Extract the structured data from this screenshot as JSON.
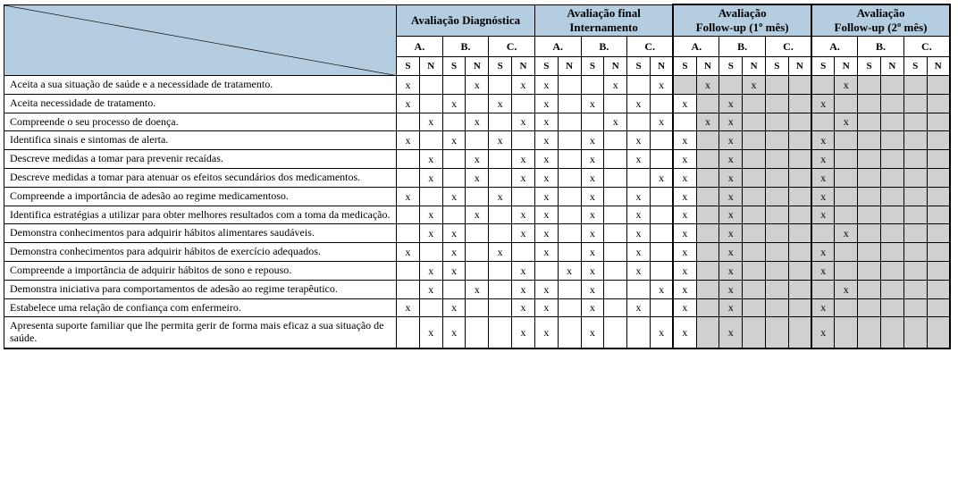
{
  "headers": {
    "phases": [
      {
        "title": "Avaliação Diagnóstica",
        "greyC": false,
        "thick": false
      },
      {
        "title": "Avaliação final\nInternamento",
        "greyC": false,
        "thick": false
      },
      {
        "title": "Avaliação\nFollow-up (1º mês)",
        "greyC": true,
        "thick": true
      },
      {
        "title": "Avaliação\nFollow-up (2º mês)",
        "greyC": true,
        "thick": true
      }
    ],
    "people": [
      "A.",
      "B.",
      "C."
    ],
    "sn": [
      "S",
      "N"
    ]
  },
  "rows": [
    {
      "label": "Aceita a sua situação de saúde e a necessidade de tratamento.",
      "j": false,
      "marks": [
        [
          "x",
          "",
          "",
          "x",
          "",
          "x"
        ],
        [
          "x",
          "",
          "",
          "x",
          "",
          "x"
        ],
        [
          "",
          "x",
          "",
          "x",
          ""
        ],
        [
          "",
          "x"
        ]
      ],
      "greyAS": true
    },
    {
      "label": "Aceita necessidade de tratamento.",
      "j": false,
      "marks": [
        [
          "x",
          "",
          "x",
          "",
          "x",
          ""
        ],
        [
          "x",
          "",
          "x",
          "",
          "x",
          ""
        ],
        [
          "x",
          "",
          "x",
          "",
          ""
        ],
        [
          "x",
          ""
        ]
      ],
      "greyAS": false
    },
    {
      "label": "Compreende o seu processo de doença.",
      "j": false,
      "marks": [
        [
          "",
          "x",
          "",
          "x",
          "",
          "x"
        ],
        [
          "x",
          "",
          "",
          "x",
          "",
          "x"
        ],
        [
          "",
          "x",
          "x",
          "",
          ""
        ],
        [
          "",
          "x"
        ]
      ],
      "greyAS": false
    },
    {
      "label": "Identifica sinais e sintomas de alerta.",
      "j": false,
      "marks": [
        [
          "x",
          "",
          "x",
          "",
          "x",
          ""
        ],
        [
          "x",
          "",
          "x",
          "",
          "x",
          ""
        ],
        [
          "x",
          "",
          "x",
          "",
          ""
        ],
        [
          "x",
          ""
        ]
      ],
      "greyAS": false
    },
    {
      "label": "Descreve medidas a tomar para prevenir recaídas.",
      "j": false,
      "marks": [
        [
          "",
          "x",
          "",
          "x",
          "",
          "x"
        ],
        [
          "x",
          "",
          "x",
          "",
          "x",
          ""
        ],
        [
          "x",
          "",
          "x",
          "",
          ""
        ],
        [
          "x",
          ""
        ]
      ],
      "greyAS": false
    },
    {
      "label": "Descreve medidas a tomar para atenuar os efeitos secundários dos medicamentos.",
      "j": false,
      "marks": [
        [
          "",
          "x",
          "",
          "x",
          "",
          "x"
        ],
        [
          "x",
          "",
          "x",
          "",
          "",
          "x"
        ],
        [
          "x",
          "",
          "x",
          "",
          ""
        ],
        [
          "x",
          ""
        ]
      ],
      "greyAS": false
    },
    {
      "label": "Compreende a importância de adesão ao regime medicamentoso.",
      "j": false,
      "marks": [
        [
          "x",
          "",
          "x",
          "",
          "x",
          ""
        ],
        [
          "x",
          "",
          "x",
          "",
          "x",
          ""
        ],
        [
          "x",
          "",
          "x",
          "",
          ""
        ],
        [
          "x",
          ""
        ]
      ],
      "greyAS": false
    },
    {
      "label": "Identifica estratégias  a utilizar para obter melhores resultados com a toma da medicação.",
      "j": false,
      "marks": [
        [
          "",
          "x",
          "",
          "x",
          "",
          "x"
        ],
        [
          "x",
          "",
          "x",
          "",
          "x",
          ""
        ],
        [
          "x",
          "",
          "x",
          "",
          ""
        ],
        [
          "x",
          ""
        ]
      ],
      "greyAS": false
    },
    {
      "label": "Demonstra conhecimentos para adquirir hábitos alimentares saudáveis.",
      "j": false,
      "marks": [
        [
          "",
          "x",
          "x",
          "",
          "",
          "x"
        ],
        [
          "x",
          "",
          "x",
          "",
          "x",
          ""
        ],
        [
          "x",
          "",
          "x",
          "",
          ""
        ],
        [
          "",
          "x"
        ]
      ],
      "greyAS": false
    },
    {
      "label": "Demonstra conhecimentos para adquirir hábitos de exercício adequados.",
      "j": false,
      "marks": [
        [
          "x",
          "",
          "x",
          "",
          "x",
          ""
        ],
        [
          "x",
          "",
          "x",
          "",
          "x",
          ""
        ],
        [
          "x",
          "",
          "x",
          "",
          ""
        ],
        [
          "x",
          ""
        ]
      ],
      "greyAS": false
    },
    {
      "label": "Compreende a importância de adquirir hábitos de sono e repouso.",
      "j": false,
      "marks": [
        [
          "",
          "x",
          "x",
          "",
          "",
          "x"
        ],
        [
          "",
          "x",
          "x",
          "",
          "x",
          ""
        ],
        [
          "x",
          "",
          "x",
          "",
          ""
        ],
        [
          "x",
          ""
        ]
      ],
      "greyAS": false
    },
    {
      "label": "Demonstra iniciativa para comportamentos de adesão ao regime terapêutico.",
      "j": true,
      "marks": [
        [
          "",
          "x",
          "",
          "x",
          "",
          "x"
        ],
        [
          "x",
          "",
          "x",
          "",
          "",
          "x"
        ],
        [
          "x",
          "",
          "x",
          "",
          ""
        ],
        [
          "",
          "x"
        ]
      ],
      "greyAS": false
    },
    {
      "label": "Estabelece uma relação de confiança com enfermeiro.",
      "j": false,
      "marks": [
        [
          "x",
          "",
          "x",
          "",
          "",
          "x"
        ],
        [
          "x",
          "",
          "x",
          "",
          "x",
          ""
        ],
        [
          "x",
          "",
          "x",
          "",
          ""
        ],
        [
          "x",
          ""
        ]
      ],
      "greyAS": false
    },
    {
      "label": "Apresenta suporte familiar que lhe permita gerir de forma mais eficaz a sua situação de saúde.",
      "j": false,
      "marks": [
        [
          "",
          "x",
          "x",
          "",
          "",
          "x"
        ],
        [
          "x",
          "",
          "x",
          "",
          "",
          "x"
        ],
        [
          "x",
          "",
          "x",
          "",
          ""
        ],
        [
          "x",
          ""
        ]
      ],
      "greyAS": false
    }
  ]
}
